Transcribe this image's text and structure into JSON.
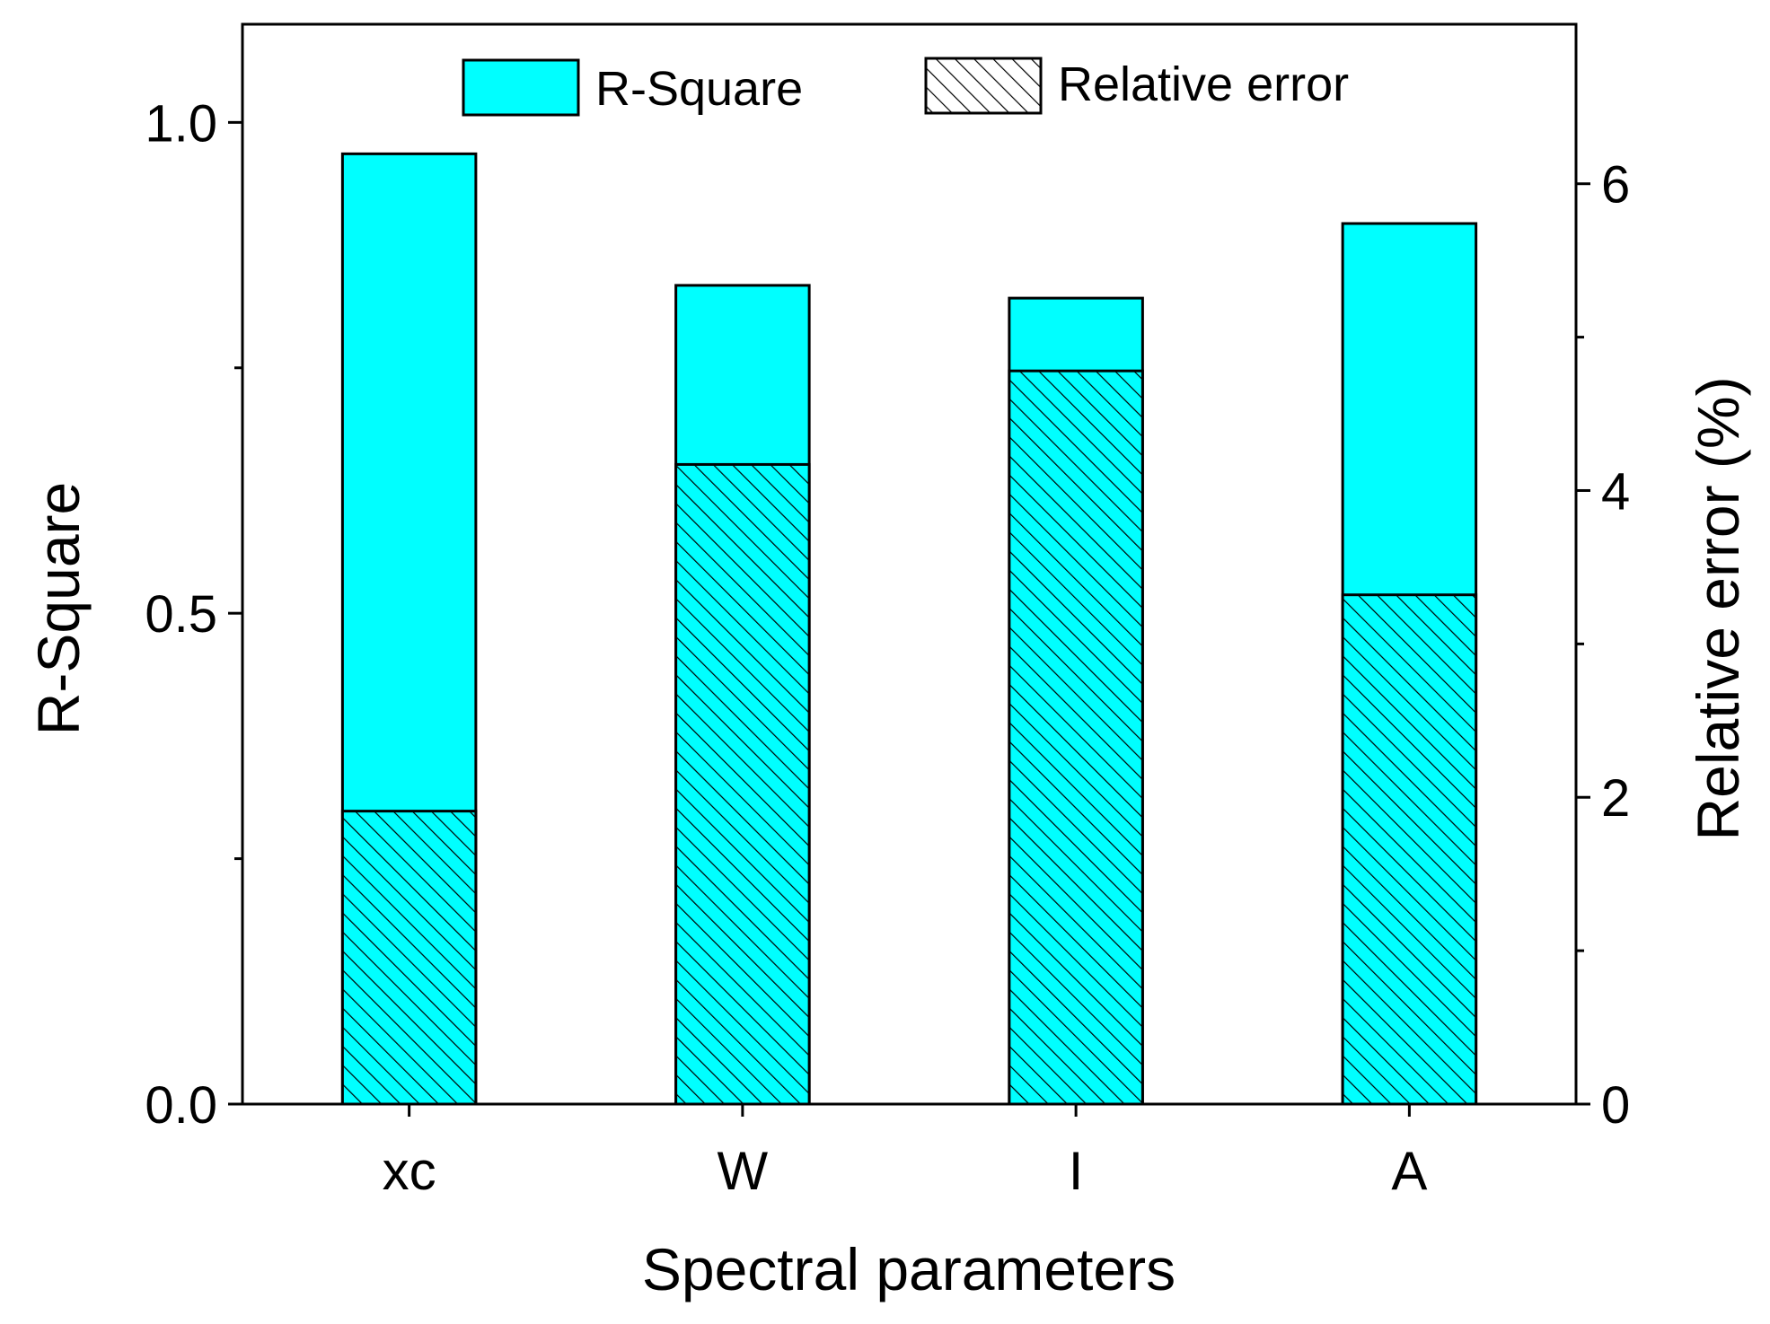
{
  "chart_data": {
    "type": "bar",
    "categories": [
      "xc",
      "W",
      "I",
      "A"
    ],
    "xlabel": "Spectral parameters",
    "series": [
      {
        "name": "R-Square",
        "axis": "left",
        "values": [
          0.968,
          0.834,
          0.821,
          0.897
        ],
        "color": "#00ffff",
        "pattern": "solid"
      },
      {
        "name": "Relative error",
        "axis": "right",
        "values": [
          1.91,
          4.17,
          4.78,
          3.32
        ],
        "color": "#00ffff",
        "pattern": "hatched"
      }
    ],
    "left_axis": {
      "label": "R-Square",
      "range": [
        0,
        1.1
      ],
      "ticks": [
        0.0,
        0.5,
        1.0
      ],
      "tick_labels": [
        "0.0",
        "0.5",
        "1.0"
      ],
      "minor_ticks": [
        0.25,
        0.75
      ]
    },
    "right_axis": {
      "label": "Relative error (%)",
      "range": [
        0,
        7.04
      ],
      "ticks": [
        0,
        2,
        4,
        6
      ],
      "tick_labels": [
        "0",
        "2",
        "4",
        "6"
      ],
      "minor_ticks": [
        1,
        3,
        5
      ]
    },
    "legend": {
      "position": "top",
      "items": [
        {
          "label": "R-Square",
          "pattern": "solid"
        },
        {
          "label": "Relative error",
          "pattern": "hatched"
        }
      ]
    },
    "grid": false
  }
}
